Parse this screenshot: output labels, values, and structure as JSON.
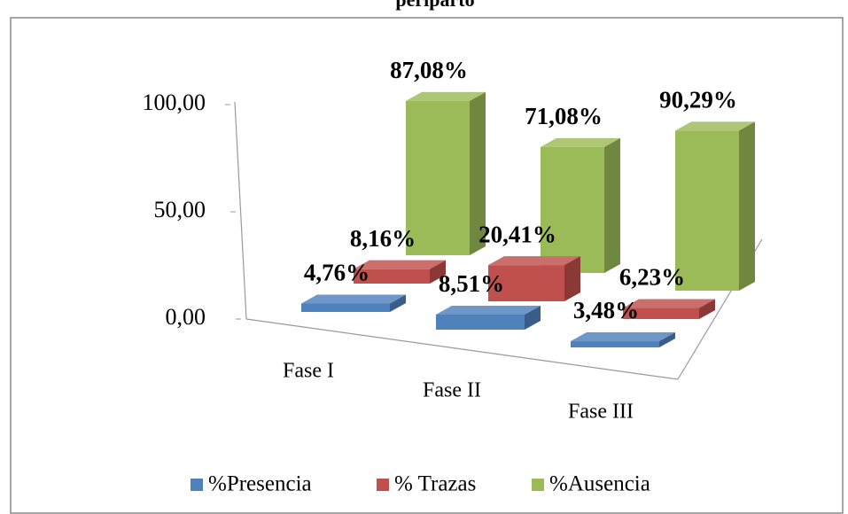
{
  "chart_data": {
    "type": "bar3d",
    "title": "periparto",
    "categories": [
      "Fase I",
      "Fase II",
      "Fase III"
    ],
    "series": [
      {
        "name": "%Presencia",
        "color": "#4f81bd",
        "values": [
          4.76,
          8.51,
          3.48
        ],
        "value_labels": [
          "4,76%",
          "8,51%",
          "3,48%"
        ]
      },
      {
        "name": "% Trazas",
        "color": "#c0504d",
        "values": [
          8.16,
          20.41,
          6.23
        ],
        "value_labels": [
          "8,16%",
          "20,41%",
          "6,23%"
        ]
      },
      {
        "name": "%Ausencia",
        "color": "#9bbb59",
        "values": [
          87.08,
          71.08,
          90.29
        ],
        "value_labels": [
          "87,08%",
          "71,08%",
          "90,29%"
        ]
      }
    ],
    "ylim": [
      0,
      100
    ],
    "yticks": [
      {
        "value": 0,
        "label": "0,00"
      },
      {
        "value": 50,
        "label": "50,00"
      },
      {
        "value": 100,
        "label": "100,00"
      }
    ],
    "legend": "bottom"
  }
}
